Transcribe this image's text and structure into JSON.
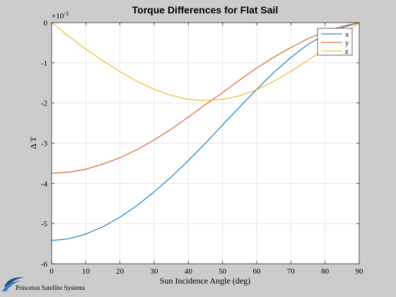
{
  "chart_data": {
    "type": "line",
    "title": "Torque Differences for Flat Sail",
    "xlabel": "Sun Incidence Angle (deg)",
    "ylabel": "Δ T",
    "y_exponent_label": "×10",
    "y_exponent_power": "-3",
    "xlim": [
      0,
      90
    ],
    "ylim": [
      -6,
      0
    ],
    "xticks": [
      0,
      10,
      20,
      30,
      40,
      50,
      60,
      70,
      80,
      90
    ],
    "yticks": [
      0,
      -1,
      -2,
      -3,
      -4,
      -5,
      -6
    ],
    "grid": true,
    "legend_position": "top-right",
    "series": [
      {
        "name": "x",
        "color": "#0072BD",
        "x": [
          0,
          5,
          10,
          15,
          20,
          25,
          30,
          35,
          40,
          45,
          50,
          55,
          60,
          65,
          70,
          75,
          80,
          85,
          90
        ],
        "y": [
          -5.42,
          -5.38,
          -5.26,
          -5.08,
          -4.84,
          -4.55,
          -4.21,
          -3.84,
          -3.43,
          -3.0,
          -2.55,
          -2.1,
          -1.66,
          -1.24,
          -0.87,
          -0.54,
          -0.3,
          -0.12,
          0.0
        ]
      },
      {
        "name": "y",
        "color": "#D95319",
        "x": [
          0,
          5,
          10,
          15,
          20,
          25,
          30,
          35,
          40,
          45,
          50,
          55,
          60,
          65,
          70,
          75,
          80,
          85,
          90
        ],
        "y": [
          -3.75,
          -3.72,
          -3.65,
          -3.52,
          -3.36,
          -3.16,
          -2.92,
          -2.65,
          -2.35,
          -2.04,
          -1.74,
          -1.43,
          -1.13,
          -0.86,
          -0.62,
          -0.4,
          -0.22,
          -0.09,
          0.0
        ]
      },
      {
        "name": "z",
        "color": "#EDB120",
        "x": [
          0,
          5,
          10,
          15,
          20,
          25,
          30,
          35,
          40,
          45,
          50,
          55,
          60,
          65,
          70,
          75,
          80,
          85,
          90
        ],
        "y": [
          0.0,
          -0.34,
          -0.66,
          -0.95,
          -1.22,
          -1.46,
          -1.66,
          -1.81,
          -1.91,
          -1.94,
          -1.91,
          -1.82,
          -1.67,
          -1.46,
          -1.21,
          -0.94,
          -0.64,
          -0.32,
          0.0
        ]
      }
    ]
  },
  "watermark": {
    "text": "Princeton Satellite Systems",
    "logo_icon": "psslogo-swoosh-icon"
  },
  "colors": {
    "figure_background": "#cccccc",
    "axes_background": "#ffffff",
    "grid": "#e1e1e1"
  }
}
